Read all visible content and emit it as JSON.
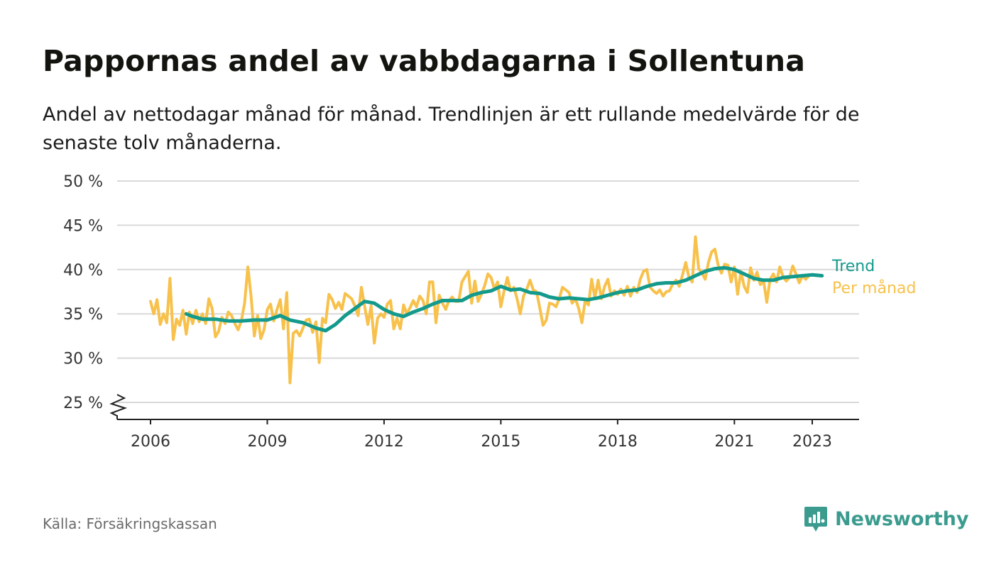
{
  "title": "Pappornas andel av vabbdagarna i Sollentuna",
  "subtitle": "Andel av nettodagar månad för månad. Trendlinjen är ett rullande medelvärde för de senaste tolv månaderna.",
  "source": "Källa: Försäkringskassan",
  "brand": "Newsworthy",
  "colors": {
    "trend": "#139a8c",
    "monthly": "#f7c14b",
    "grid": "#d9d9d9",
    "axis": "#222222",
    "brand": "#3a9b8e"
  },
  "chart_data": {
    "type": "line",
    "ylim": [
      25,
      50
    ],
    "y_ticks": [
      25,
      30,
      35,
      40,
      45,
      50
    ],
    "y_tick_labels": [
      "25 %",
      "30 %",
      "35 %",
      "40 %",
      "45 %",
      "50 %"
    ],
    "x_ticks": [
      2006,
      2009,
      2012,
      2015,
      2018,
      2021,
      2023
    ],
    "x_tick_labels": [
      "2006",
      "2009",
      "2012",
      "2015",
      "2018",
      "2021",
      "2023"
    ],
    "y_axis_break": true,
    "grid": true,
    "series": [
      {
        "name": "Per månad",
        "color": "#f7c14b",
        "points": [
          [
            2006.0,
            36.4
          ],
          [
            2006.083,
            35.0
          ],
          [
            2006.167,
            36.6
          ],
          [
            2006.25,
            33.8
          ],
          [
            2006.333,
            35.0
          ],
          [
            2006.417,
            34.0
          ],
          [
            2006.5,
            39.0
          ],
          [
            2006.583,
            32.1
          ],
          [
            2006.667,
            34.4
          ],
          [
            2006.75,
            33.7
          ],
          [
            2006.833,
            35.4
          ],
          [
            2006.917,
            32.7
          ],
          [
            2007.0,
            35.2
          ],
          [
            2007.083,
            33.9
          ],
          [
            2007.167,
            35.4
          ],
          [
            2007.25,
            34.1
          ],
          [
            2007.333,
            35.0
          ],
          [
            2007.417,
            33.9
          ],
          [
            2007.5,
            36.7
          ],
          [
            2007.583,
            35.6
          ],
          [
            2007.667,
            32.4
          ],
          [
            2007.75,
            33.0
          ],
          [
            2007.833,
            34.6
          ],
          [
            2007.917,
            33.9
          ],
          [
            2008.0,
            35.2
          ],
          [
            2008.083,
            34.8
          ],
          [
            2008.167,
            33.9
          ],
          [
            2008.25,
            33.2
          ],
          [
            2008.333,
            34.2
          ],
          [
            2008.417,
            36.2
          ],
          [
            2008.5,
            40.3
          ],
          [
            2008.583,
            37.0
          ],
          [
            2008.667,
            32.5
          ],
          [
            2008.75,
            34.8
          ],
          [
            2008.833,
            32.2
          ],
          [
            2008.917,
            33.2
          ],
          [
            2009.0,
            35.5
          ],
          [
            2009.083,
            36.1
          ],
          [
            2009.167,
            34.2
          ],
          [
            2009.25,
            35.5
          ],
          [
            2009.333,
            36.6
          ],
          [
            2009.417,
            33.3
          ],
          [
            2009.5,
            37.4
          ],
          [
            2009.583,
            27.2
          ],
          [
            2009.667,
            32.8
          ],
          [
            2009.75,
            33.1
          ],
          [
            2009.833,
            32.5
          ],
          [
            2009.917,
            33.4
          ],
          [
            2010.0,
            34.3
          ],
          [
            2010.083,
            34.4
          ],
          [
            2010.167,
            32.9
          ],
          [
            2010.25,
            34.1
          ],
          [
            2010.333,
            29.5
          ],
          [
            2010.417,
            34.5
          ],
          [
            2010.5,
            34.0
          ],
          [
            2010.583,
            37.2
          ],
          [
            2010.667,
            36.6
          ],
          [
            2010.75,
            35.6
          ],
          [
            2010.833,
            36.3
          ],
          [
            2010.917,
            35.5
          ],
          [
            2011.0,
            37.3
          ],
          [
            2011.083,
            37.0
          ],
          [
            2011.167,
            36.7
          ],
          [
            2011.25,
            35.9
          ],
          [
            2011.333,
            34.8
          ],
          [
            2011.417,
            38.0
          ],
          [
            2011.5,
            35.9
          ],
          [
            2011.583,
            33.8
          ],
          [
            2011.667,
            35.9
          ],
          [
            2011.75,
            31.7
          ],
          [
            2011.833,
            34.5
          ],
          [
            2011.917,
            35.0
          ],
          [
            2012.0,
            34.6
          ],
          [
            2012.083,
            36.1
          ],
          [
            2012.167,
            36.5
          ],
          [
            2012.25,
            33.3
          ],
          [
            2012.333,
            34.5
          ],
          [
            2012.417,
            33.3
          ],
          [
            2012.5,
            36.0
          ],
          [
            2012.583,
            35.0
          ],
          [
            2012.667,
            35.7
          ],
          [
            2012.75,
            36.5
          ],
          [
            2012.833,
            35.8
          ],
          [
            2012.917,
            37.0
          ],
          [
            2013.0,
            36.5
          ],
          [
            2013.083,
            35.0
          ],
          [
            2013.167,
            38.6
          ],
          [
            2013.25,
            38.6
          ],
          [
            2013.333,
            34.0
          ],
          [
            2013.417,
            37.1
          ],
          [
            2013.5,
            36.2
          ],
          [
            2013.583,
            35.5
          ],
          [
            2013.667,
            36.5
          ],
          [
            2013.75,
            36.9
          ],
          [
            2013.833,
            36.4
          ],
          [
            2013.917,
            36.4
          ],
          [
            2014.0,
            38.6
          ],
          [
            2014.083,
            39.2
          ],
          [
            2014.167,
            39.8
          ],
          [
            2014.25,
            36.2
          ],
          [
            2014.333,
            38.7
          ],
          [
            2014.417,
            36.4
          ],
          [
            2014.5,
            37.2
          ],
          [
            2014.583,
            38.2
          ],
          [
            2014.667,
            39.5
          ],
          [
            2014.75,
            39.1
          ],
          [
            2014.833,
            37.8
          ],
          [
            2014.917,
            38.6
          ],
          [
            2015.0,
            35.8
          ],
          [
            2015.083,
            37.6
          ],
          [
            2015.167,
            39.1
          ],
          [
            2015.25,
            37.6
          ],
          [
            2015.333,
            38.0
          ],
          [
            2015.417,
            36.7
          ],
          [
            2015.5,
            35.0
          ],
          [
            2015.583,
            37.0
          ],
          [
            2015.667,
            37.8
          ],
          [
            2015.75,
            38.8
          ],
          [
            2015.833,
            37.7
          ],
          [
            2015.917,
            37.5
          ],
          [
            2016.0,
            35.7
          ],
          [
            2016.083,
            33.7
          ],
          [
            2016.167,
            34.3
          ],
          [
            2016.25,
            36.2
          ],
          [
            2016.333,
            36.1
          ],
          [
            2016.417,
            35.8
          ],
          [
            2016.5,
            36.7
          ],
          [
            2016.583,
            38.0
          ],
          [
            2016.667,
            37.7
          ],
          [
            2016.75,
            37.4
          ],
          [
            2016.833,
            36.2
          ],
          [
            2016.917,
            36.7
          ],
          [
            2017.0,
            35.6
          ],
          [
            2017.083,
            34.0
          ],
          [
            2017.167,
            36.5
          ],
          [
            2017.25,
            36.0
          ],
          [
            2017.333,
            38.9
          ],
          [
            2017.417,
            36.8
          ],
          [
            2017.5,
            38.8
          ],
          [
            2017.583,
            36.7
          ],
          [
            2017.667,
            38.1
          ],
          [
            2017.75,
            38.9
          ],
          [
            2017.833,
            37.0
          ],
          [
            2017.917,
            37.6
          ],
          [
            2018.0,
            37.2
          ],
          [
            2018.083,
            37.8
          ],
          [
            2018.167,
            37.1
          ],
          [
            2018.25,
            38.1
          ],
          [
            2018.333,
            37.0
          ],
          [
            2018.417,
            38.0
          ],
          [
            2018.5,
            37.4
          ],
          [
            2018.583,
            38.9
          ],
          [
            2018.667,
            39.8
          ],
          [
            2018.75,
            40.0
          ],
          [
            2018.833,
            38.0
          ],
          [
            2018.917,
            37.6
          ],
          [
            2019.0,
            37.3
          ],
          [
            2019.083,
            37.7
          ],
          [
            2019.167,
            37.0
          ],
          [
            2019.25,
            37.5
          ],
          [
            2019.333,
            37.6
          ],
          [
            2019.417,
            38.4
          ],
          [
            2019.5,
            38.8
          ],
          [
            2019.583,
            38.1
          ],
          [
            2019.667,
            39.4
          ],
          [
            2019.75,
            40.8
          ],
          [
            2019.833,
            39.1
          ],
          [
            2019.917,
            38.6
          ],
          [
            2020.0,
            43.7
          ],
          [
            2020.083,
            40.1
          ],
          [
            2020.167,
            39.6
          ],
          [
            2020.25,
            38.9
          ],
          [
            2020.333,
            40.8
          ],
          [
            2020.417,
            42.0
          ],
          [
            2020.5,
            42.3
          ],
          [
            2020.583,
            40.5
          ],
          [
            2020.667,
            39.6
          ],
          [
            2020.75,
            40.6
          ],
          [
            2020.833,
            40.5
          ],
          [
            2020.917,
            38.6
          ],
          [
            2021.0,
            40.3
          ],
          [
            2021.083,
            37.2
          ],
          [
            2021.167,
            39.8
          ],
          [
            2021.25,
            38.1
          ],
          [
            2021.333,
            37.4
          ],
          [
            2021.417,
            40.2
          ],
          [
            2021.5,
            38.8
          ],
          [
            2021.583,
            39.7
          ],
          [
            2021.667,
            38.3
          ],
          [
            2021.75,
            38.7
          ],
          [
            2021.833,
            36.3
          ],
          [
            2021.917,
            38.9
          ],
          [
            2022.0,
            39.5
          ],
          [
            2022.083,
            38.6
          ],
          [
            2022.167,
            40.3
          ],
          [
            2022.25,
            39.2
          ],
          [
            2022.333,
            38.7
          ],
          [
            2022.417,
            39.1
          ],
          [
            2022.5,
            40.4
          ],
          [
            2022.583,
            39.5
          ],
          [
            2022.667,
            38.5
          ],
          [
            2022.75,
            39.3
          ],
          [
            2022.833,
            38.9
          ],
          [
            2022.917,
            39.3
          ]
        ]
      },
      {
        "name": "Trend",
        "color": "#139a8c",
        "points": [
          [
            2006.917,
            35.0
          ],
          [
            2007.083,
            34.7
          ],
          [
            2007.333,
            34.4
          ],
          [
            2007.667,
            34.4
          ],
          [
            2008.0,
            34.2
          ],
          [
            2008.333,
            34.2
          ],
          [
            2008.667,
            34.3
          ],
          [
            2009.0,
            34.3
          ],
          [
            2009.333,
            34.8
          ],
          [
            2009.583,
            34.3
          ],
          [
            2009.917,
            34.0
          ],
          [
            2010.25,
            33.4
          ],
          [
            2010.5,
            33.1
          ],
          [
            2010.75,
            33.8
          ],
          [
            2011.0,
            34.8
          ],
          [
            2011.25,
            35.6
          ],
          [
            2011.5,
            36.4
          ],
          [
            2011.75,
            36.2
          ],
          [
            2012.0,
            35.5
          ],
          [
            2012.25,
            35.0
          ],
          [
            2012.5,
            34.7
          ],
          [
            2012.75,
            35.2
          ],
          [
            2013.0,
            35.6
          ],
          [
            2013.25,
            36.1
          ],
          [
            2013.5,
            36.5
          ],
          [
            2013.75,
            36.5
          ],
          [
            2014.0,
            36.5
          ],
          [
            2014.25,
            37.1
          ],
          [
            2014.5,
            37.4
          ],
          [
            2014.75,
            37.6
          ],
          [
            2015.0,
            38.1
          ],
          [
            2015.25,
            37.7
          ],
          [
            2015.5,
            37.8
          ],
          [
            2015.75,
            37.4
          ],
          [
            2016.0,
            37.3
          ],
          [
            2016.25,
            36.9
          ],
          [
            2016.5,
            36.7
          ],
          [
            2016.75,
            36.8
          ],
          [
            2017.0,
            36.7
          ],
          [
            2017.25,
            36.6
          ],
          [
            2017.5,
            36.8
          ],
          [
            2017.75,
            37.1
          ],
          [
            2018.0,
            37.4
          ],
          [
            2018.25,
            37.6
          ],
          [
            2018.5,
            37.7
          ],
          [
            2018.75,
            38.1
          ],
          [
            2019.0,
            38.4
          ],
          [
            2019.25,
            38.5
          ],
          [
            2019.5,
            38.5
          ],
          [
            2019.75,
            38.8
          ],
          [
            2020.0,
            39.3
          ],
          [
            2020.25,
            39.8
          ],
          [
            2020.5,
            40.1
          ],
          [
            2020.75,
            40.2
          ],
          [
            2021.0,
            40.0
          ],
          [
            2021.25,
            39.5
          ],
          [
            2021.5,
            39.0
          ],
          [
            2021.75,
            38.8
          ],
          [
            2022.0,
            38.8
          ],
          [
            2022.25,
            39.1
          ],
          [
            2022.5,
            39.2
          ],
          [
            2022.75,
            39.3
          ],
          [
            2023.0,
            39.4
          ],
          [
            2023.25,
            39.3
          ]
        ]
      }
    ],
    "series_labels": [
      "Trend",
      "Per månad"
    ]
  }
}
